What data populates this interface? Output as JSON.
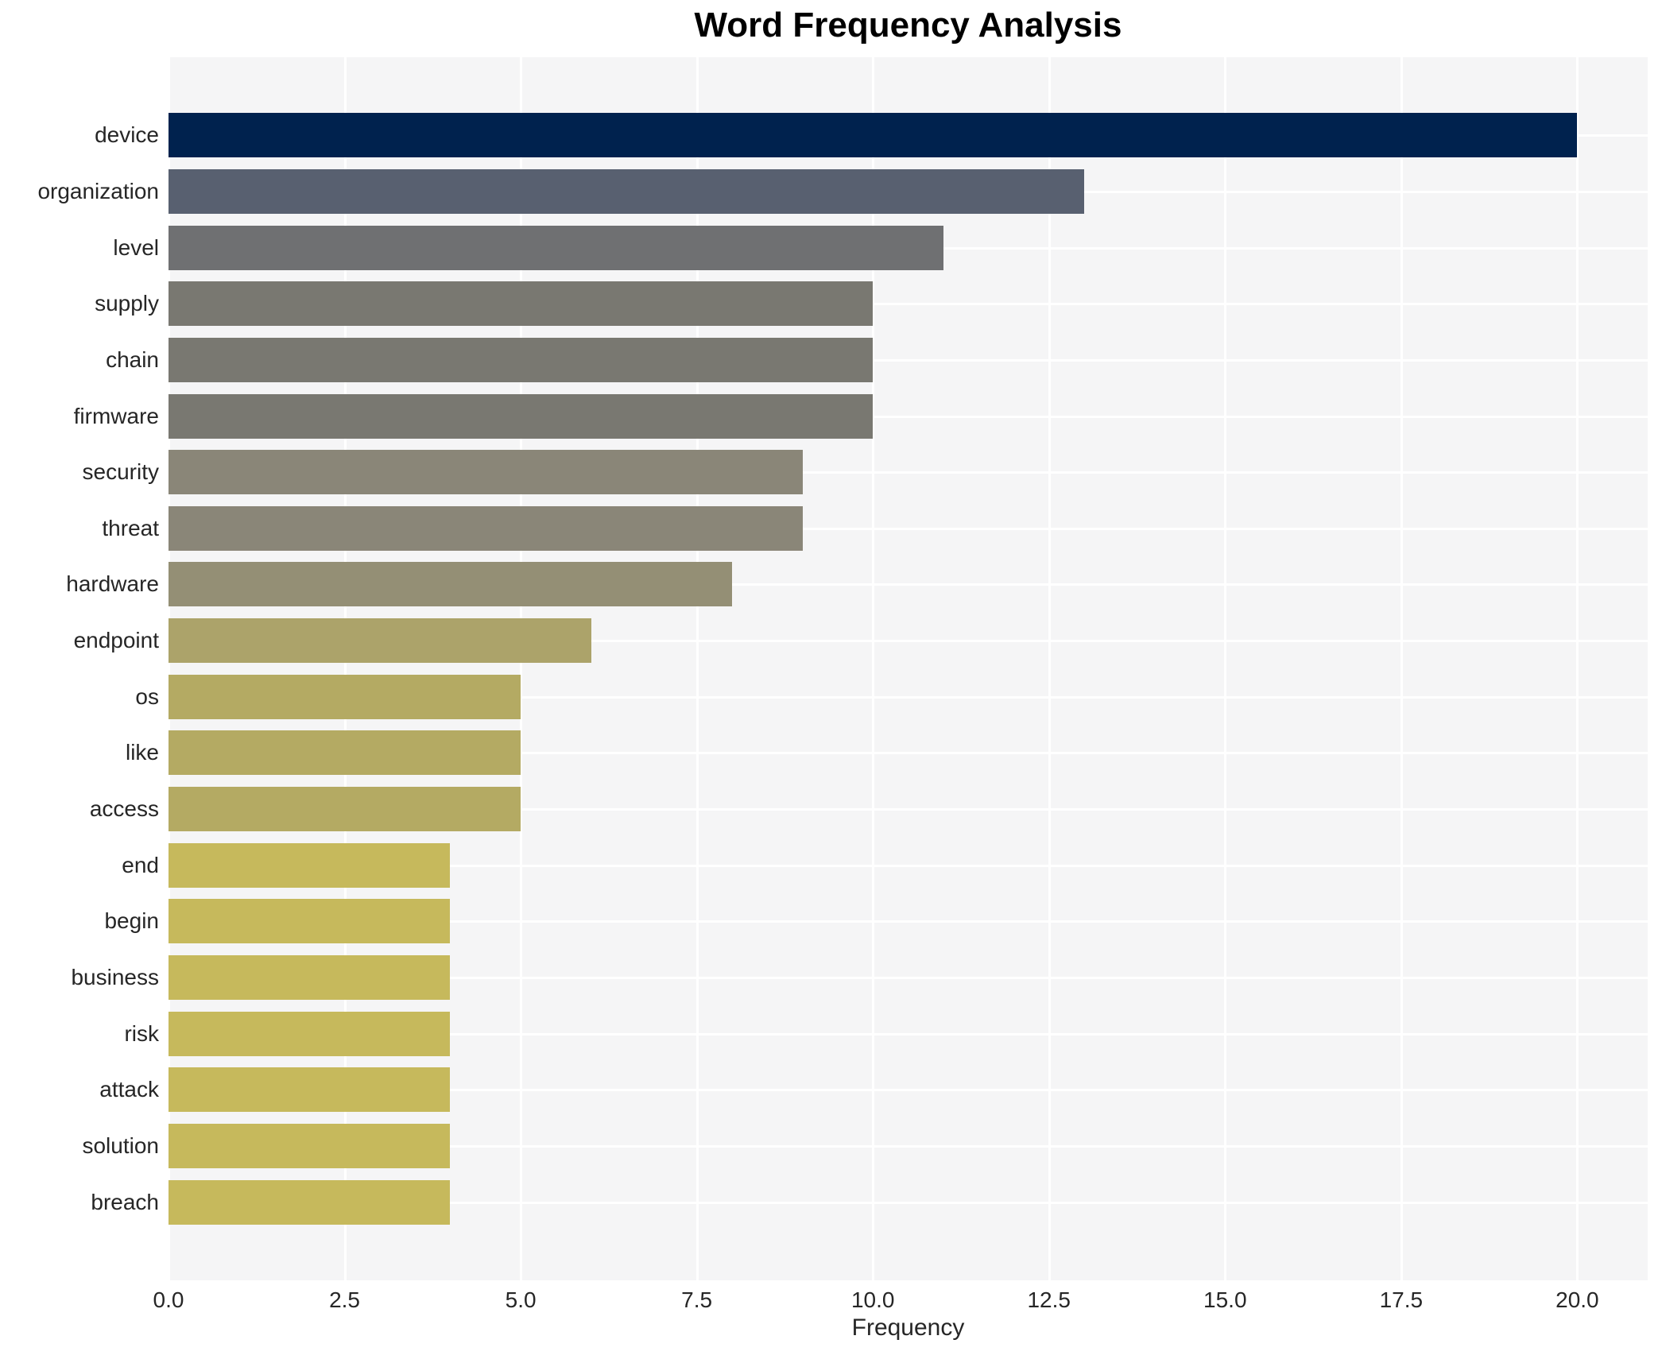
{
  "chart_data": {
    "type": "bar",
    "orientation": "horizontal",
    "title": "Word Frequency Analysis",
    "xlabel": "Frequency",
    "ylabel": "",
    "xlim": [
      0,
      21
    ],
    "xticks": [
      {
        "label": "0.0",
        "value": 0
      },
      {
        "label": "2.5",
        "value": 2.5
      },
      {
        "label": "5.0",
        "value": 5
      },
      {
        "label": "7.5",
        "value": 7.5
      },
      {
        "label": "10.0",
        "value": 10
      },
      {
        "label": "12.5",
        "value": 12.5
      },
      {
        "label": "15.0",
        "value": 15
      },
      {
        "label": "17.5",
        "value": 17.5
      },
      {
        "label": "20.0",
        "value": 20
      }
    ],
    "grid": true,
    "legend": false,
    "categories": [
      "device",
      "organization",
      "level",
      "supply",
      "chain",
      "firmware",
      "security",
      "threat",
      "hardware",
      "endpoint",
      "os",
      "like",
      "access",
      "end",
      "begin",
      "business",
      "risk",
      "attack",
      "solution",
      "breach"
    ],
    "values": [
      20,
      13,
      11,
      10,
      10,
      10,
      9,
      9,
      8,
      6,
      5,
      5,
      5,
      4,
      4,
      4,
      4,
      4,
      4,
      4
    ],
    "bar_colors": [
      "#00224e",
      "#586070",
      "#6f7072",
      "#797871",
      "#797871",
      "#797871",
      "#8a8678",
      "#8a8678",
      "#948f75",
      "#aca36a",
      "#b4aa63",
      "#b4aa63",
      "#b4aa63",
      "#c6b95c",
      "#c6b95c",
      "#c6b95c",
      "#c6b95c",
      "#c6b95c",
      "#c6b95c",
      "#c6b95c"
    ],
    "colors": {
      "plot_background": "#f5f5f6",
      "gridline": "#ffffff",
      "tick_text": "#262626",
      "title_text": "#000000"
    }
  }
}
